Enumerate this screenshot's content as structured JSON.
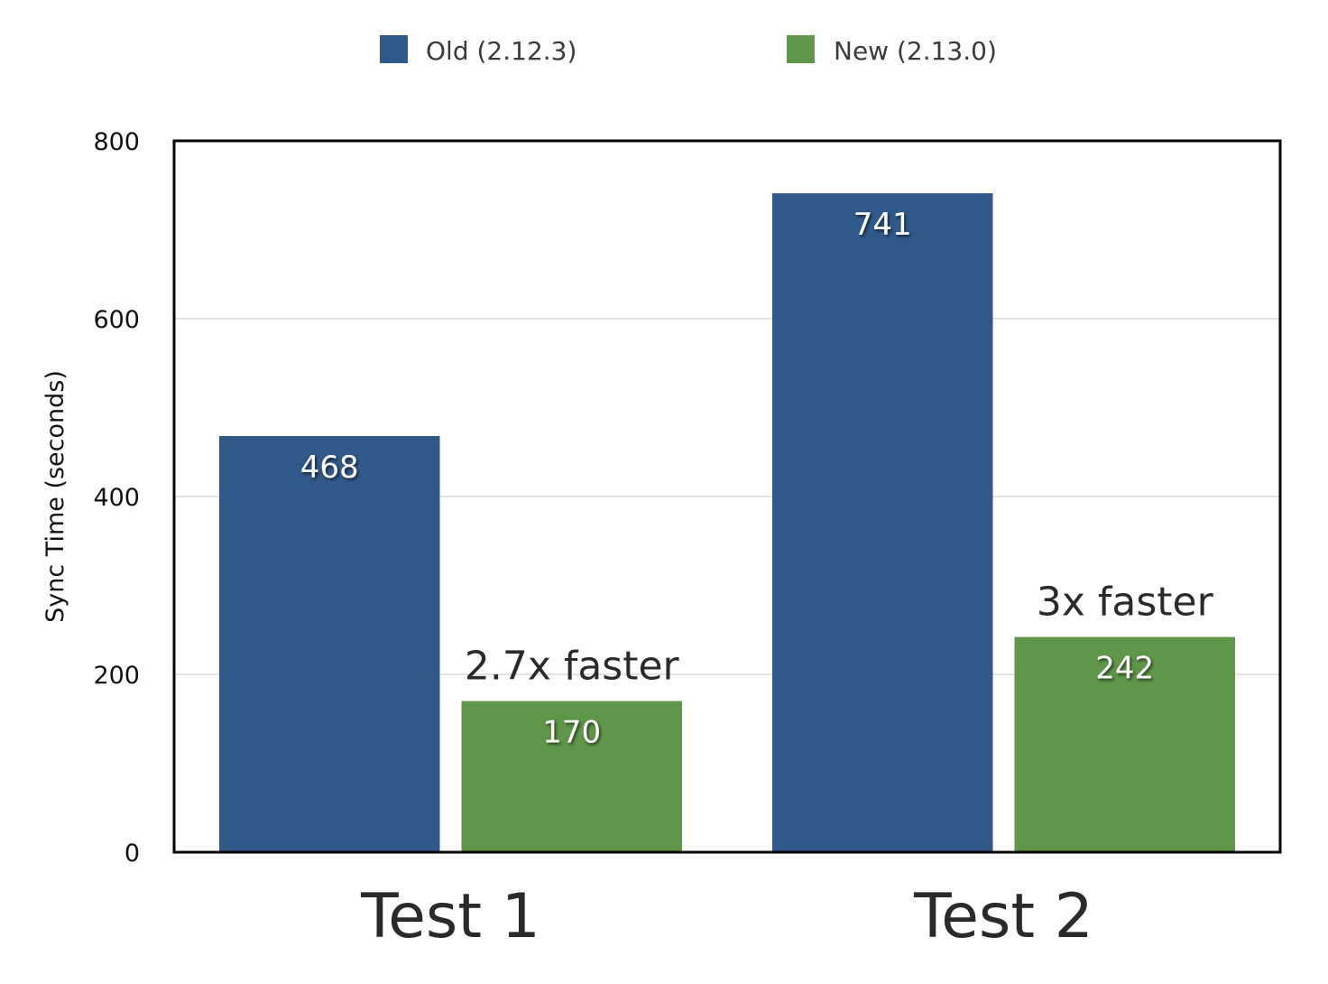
{
  "chart_data": {
    "type": "bar",
    "categories": [
      "Test 1",
      "Test 2"
    ],
    "series": [
      {
        "name": "Old (2.12.3)",
        "color": "#30598a",
        "values": [
          468,
          741
        ]
      },
      {
        "name": "New (2.13.0)",
        "color": "#5f9649",
        "values": [
          170,
          242
        ]
      }
    ],
    "ylabel": "Sync Time (seconds)",
    "xlabel": "",
    "title": "",
    "ylim": [
      0,
      800
    ],
    "yticks": [
      0,
      200,
      400,
      600,
      800
    ],
    "grid": true,
    "legend_position": "top-center",
    "annotations": [
      {
        "category": "Test 1",
        "series": "New (2.13.0)",
        "text": "2.7x faster"
      },
      {
        "category": "Test 2",
        "series": "New (2.13.0)",
        "text": "3x faster"
      }
    ]
  }
}
